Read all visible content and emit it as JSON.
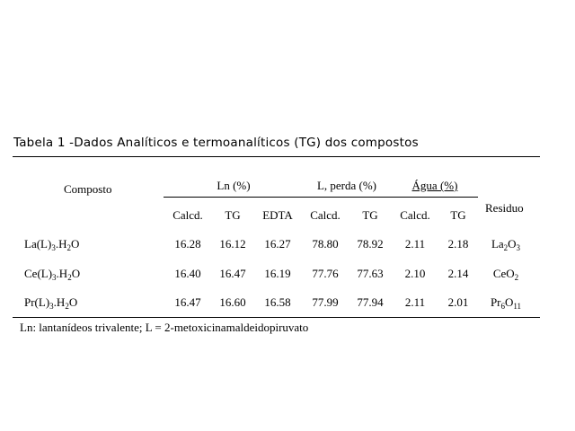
{
  "title": "Tabela 1 -Dados Analíticos e termoanalíticos (TG) dos compostos",
  "headers": {
    "composto": "Composto",
    "ln": "Ln  (%)",
    "l_perda": "L, perda (%)",
    "agua": "Água (%)",
    "residuo": "Residuo",
    "sub": [
      "Calcd.",
      "TG",
      "EDTA",
      "Calcd.",
      "TG",
      "Calcd.",
      "TG"
    ]
  },
  "rows": [
    {
      "composto": {
        "a": "La(L)",
        "s1": "3",
        "b": ".H",
        "s2": "2",
        "c": "O"
      },
      "values": [
        "16.28",
        "16.12",
        "16.27",
        "78.80",
        "78.92",
        "2.11",
        "2.18"
      ],
      "residuo": {
        "a": "La",
        "s1": "2",
        "b": "O",
        "s2": "3"
      }
    },
    {
      "composto": {
        "a": "Ce(L)",
        "s1": "3",
        "b": ".H",
        "s2": "2",
        "c": "O"
      },
      "values": [
        "16.40",
        "16.47",
        "16.19",
        "77.76",
        "77.63",
        "2.10",
        "2.14"
      ],
      "residuo": {
        "a": "CeO",
        "s1": "2",
        "b": "",
        "s2": ""
      }
    },
    {
      "composto": {
        "a": "Pr(L)",
        "s1": "3",
        "b": ".H",
        "s2": "2",
        "c": "O"
      },
      "values": [
        "16.47",
        "16.60",
        "16.58",
        "77.99",
        "77.94",
        "2.11",
        "2.01"
      ],
      "residuo": {
        "a": "Pr",
        "s1": "6",
        "b": "O",
        "s2": "11"
      }
    }
  ],
  "footnote": "Ln: lantanídeos trivalente; L = 2-metoxicinamaldeidopiruvato"
}
